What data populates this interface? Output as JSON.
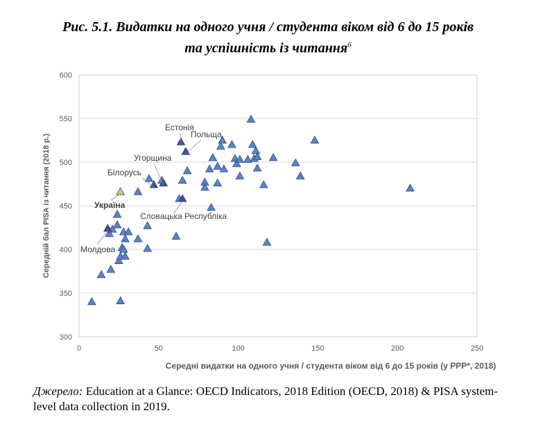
{
  "title": {
    "line1": "Рис. 5.1. Видатки на одного учня / студента віком від 6 до 15 років",
    "line2": "та успішність із читання",
    "footnote_mark": "6"
  },
  "caption": {
    "prefix": "Джерело:",
    "text": " Education at a Glance: OECD Indicators, 2018 Edition (OECD, 2018) & PISA system-level data collection in 2019."
  },
  "colors": {
    "marker_fill": "#5b82c4",
    "marker_stroke": "#2f4f8a",
    "highlight_fill": "#3d4f8e",
    "ukraine_fill": "#e4c85a",
    "grid": "#d9d9d9",
    "axis_text": "#595959",
    "label_text": "#404040"
  },
  "chart_data": {
    "type": "scatter",
    "xlabel": "Середні видатки на одного учня / студента віком від 6 до 15 років (у PPP*, 2018)",
    "ylabel": "Середній бал PISA із читання (2018 р.)",
    "xlim": [
      0,
      250
    ],
    "ylim": [
      300,
      600
    ],
    "xticks": [
      0,
      50,
      100,
      150,
      200,
      250
    ],
    "yticks": [
      300,
      350,
      400,
      450,
      500,
      550,
      600
    ],
    "grid": "horizontal",
    "points": [
      [
        8,
        340
      ],
      [
        14,
        371
      ],
      [
        20,
        377
      ],
      [
        19,
        418
      ],
      [
        21,
        423
      ],
      [
        24,
        440
      ],
      [
        24,
        428
      ],
      [
        25,
        387
      ],
      [
        26,
        341
      ],
      [
        26,
        392
      ],
      [
        27,
        402
      ],
      [
        28,
        400
      ],
      [
        28,
        420
      ],
      [
        29,
        392
      ],
      [
        29,
        412
      ],
      [
        31,
        420
      ],
      [
        37,
        466
      ],
      [
        37,
        412
      ],
      [
        43,
        427
      ],
      [
        43,
        401
      ],
      [
        44,
        481
      ],
      [
        52,
        479
      ],
      [
        53,
        476
      ],
      [
        61,
        415
      ],
      [
        63,
        458
      ],
      [
        65,
        479
      ],
      [
        68,
        490
      ],
      [
        79,
        477
      ],
      [
        79,
        471
      ],
      [
        82,
        492
      ],
      [
        83,
        448
      ],
      [
        84,
        505
      ],
      [
        87,
        476
      ],
      [
        87,
        495
      ],
      [
        89,
        518
      ],
      [
        90,
        525
      ],
      [
        91,
        492
      ],
      [
        96,
        520
      ],
      [
        98,
        504
      ],
      [
        99,
        498
      ],
      [
        101,
        484
      ],
      [
        101,
        503
      ],
      [
        106,
        503
      ],
      [
        108,
        549
      ],
      [
        109,
        520
      ],
      [
        110,
        504
      ],
      [
        111,
        513
      ],
      [
        112,
        493
      ],
      [
        112,
        506
      ],
      [
        116,
        474
      ],
      [
        118,
        408
      ],
      [
        122,
        505
      ],
      [
        136,
        499
      ],
      [
        139,
        484
      ],
      [
        148,
        525
      ],
      [
        208,
        470
      ]
    ],
    "highlighted": [
      {
        "name": "Естонія",
        "x": 64,
        "y": 523
      },
      {
        "name": "Польща",
        "x": 67,
        "y": 512
      },
      {
        "name": "Угорщина",
        "x": 53,
        "y": 476
      },
      {
        "name": "Білорусь",
        "x": 47,
        "y": 474
      },
      {
        "name": "Україна",
        "x": 26,
        "y": 466
      },
      {
        "name": "Словацька Республіка",
        "x": 65,
        "y": 458
      },
      {
        "name": "Молдова",
        "x": 18,
        "y": 424
      }
    ]
  }
}
